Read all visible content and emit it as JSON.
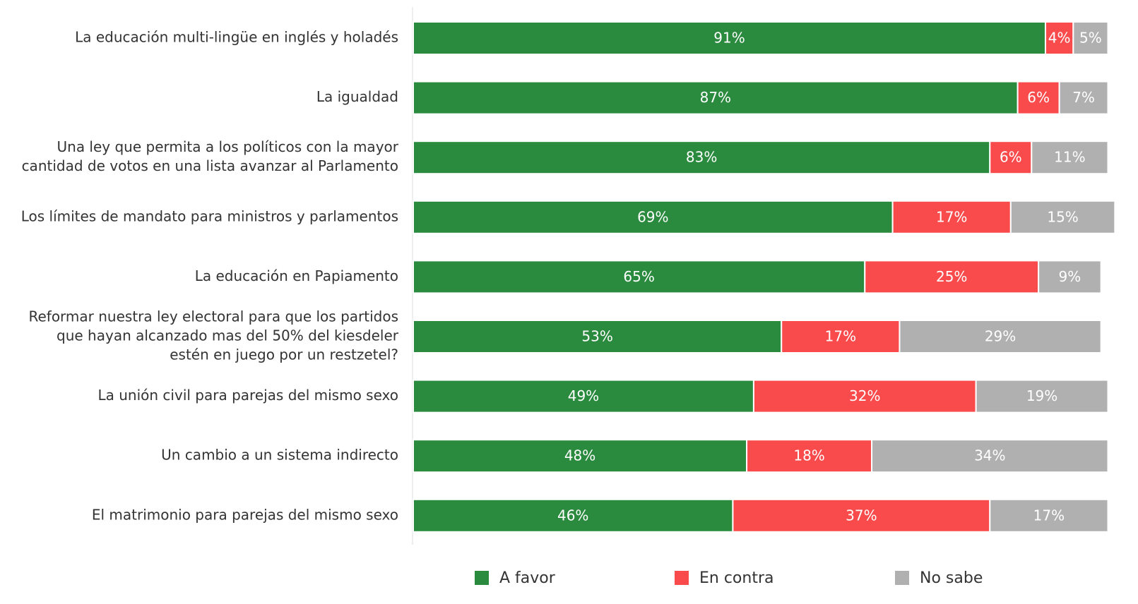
{
  "chart_data": {
    "type": "stacked-bar-horizontal",
    "categories": [
      [
        "La educación multi-lingüe en inglés y holadés"
      ],
      [
        "La igualdad"
      ],
      [
        "Una ley que permita a los políticos con la mayor",
        "cantidad de votos en una lista avanzar al Parlamento"
      ],
      [
        "Los límites de mandato para ministros y parlamentos"
      ],
      [
        "La educación en Papiamento"
      ],
      [
        "Reformar nuestra ley electoral para que los partidos",
        "que hayan alcanzado mas del 50% del kiesdeler",
        "estén en juego por un restzetel?"
      ],
      [
        "La unión civil para parejas del mismo sexo"
      ],
      [
        "Un cambio a un sistema indirecto"
      ],
      [
        "El matrimonio para parejas del mismo sexo"
      ]
    ],
    "series": [
      {
        "name": "A favor",
        "color": "#2a8a3e",
        "values": [
          91,
          87,
          83,
          69,
          65,
          53,
          49,
          48,
          46
        ],
        "value_labels": [
          "91%",
          "87%",
          "83%",
          "69%",
          "65%",
          "53%",
          "49%",
          "48%",
          "46%"
        ]
      },
      {
        "name": "En contra",
        "color": "#f94b4b",
        "values": [
          4,
          6,
          6,
          17,
          25,
          17,
          32,
          18,
          37
        ],
        "value_labels": [
          "4%",
          "6%",
          "6%",
          "17%",
          "25%",
          "17%",
          "32%",
          "18%",
          "37%"
        ]
      },
      {
        "name": "No sabe",
        "color": "#b0b0b0",
        "values": [
          5,
          7,
          11,
          15,
          9,
          29,
          19,
          34,
          17
        ],
        "value_labels": [
          "5%",
          "7%",
          "11%",
          "15%",
          "9%",
          "29%",
          "19%",
          "34%",
          "17%"
        ]
      }
    ],
    "xlim": [
      0,
      100
    ]
  }
}
